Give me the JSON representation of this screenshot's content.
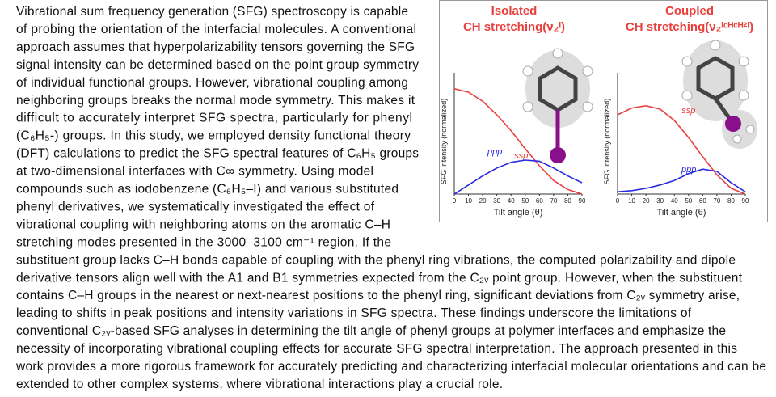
{
  "text": {
    "lines": [
      "Vibrational sum frequency generation (SFG) spectroscopy is capable",
      "of probing the orientation of the interfacial molecules. A conventional",
      "approach assumes that hyperpolarizability tensors governing the SFG",
      "signal intensity can be determined based on the point group symmetry",
      "of individual functional groups. However, vibrational coupling among",
      "neighboring groups breaks the normal mode symmetry. This makes it",
      "difficult to accurately interpret SFG spectra, particularly for phenyl",
      "(C₆H₅-) groups. In this study, we employed density functional theory",
      "(DFT) calculations to predict the SFG spectral features of C₆H₅ groups",
      "at two-dimensional interfaces with C∞ symmetry. Using model",
      "compounds such as iodobenzene (C₆H₅–I) and various substituted",
      "phenyl derivatives, we systematically investigated the effect of",
      "vibrational coupling with neighboring atoms on the aromatic C–H",
      "stretching modes presented in the 3000–3100 cm⁻¹ region. If the",
      "substituent group lacks C–H bonds capable of coupling with the phenyl ring vibrations, the computed polarizability and dipole",
      "derivative tensors align well with the A1 and B1 symmetries expected from the C₂ᵥ point group. However, when the substituent",
      "contains C–H groups in the nearest or next-nearest positions to the phenyl ring, significant deviations from C₂ᵥ symmetry arise,",
      "leading to shifts in peak positions and intensity variations in SFG spectra. These findings underscore the limitations of",
      "conventional C₂ᵥ-based SFG analyses in determining the tilt angle of phenyl groups at polymer interfaces and emphasize the",
      "necessity of incorporating vibrational coupling effects for accurate SFG spectral interpretation. The approach presented in this",
      "work provides a more rigorous framework for accurately predicting and characterizing interfacial molecular orientations and can be",
      "extended to other complex systems, where vibrational interactions play a crucial role."
    ]
  },
  "figure": {
    "charts": [
      {
        "type": "line",
        "title": "Isolated",
        "subtitle": "CH stretching(ν₂ᴵ)",
        "x_label": "Tilt angle (θ)",
        "y_label": "SFG intensity (normalized)",
        "x": [
          0,
          10,
          20,
          30,
          40,
          50,
          60,
          70,
          80,
          90
        ],
        "xlim": [
          0,
          90
        ],
        "xticks": [
          0,
          10,
          20,
          30,
          40,
          50,
          60,
          70,
          80,
          90
        ],
        "ylim": [
          0,
          1
        ],
        "series": [
          {
            "name": "ssp",
            "color": "#e8403c",
            "values": [
              0.93,
              0.9,
              0.82,
              0.7,
              0.56,
              0.4,
              0.25,
              0.12,
              0.04,
              0
            ]
          },
          {
            "name": "ppp",
            "color": "#2a2ae0",
            "values": [
              0,
              0.08,
              0.16,
              0.23,
              0.28,
              0.3,
              0.29,
              0.23,
              0.16,
              0.1
            ]
          }
        ]
      },
      {
        "type": "line",
        "title": "Coupled",
        "subtitle": "CH stretching(ν₂ᴵᶜᴴᶜᴴ²ᴵ)",
        "x_label": "Tilt angle (θ)",
        "y_label": "SFG intensity (normalized)",
        "x": [
          0,
          10,
          20,
          30,
          40,
          50,
          60,
          70,
          80,
          90
        ],
        "xlim": [
          0,
          90
        ],
        "xticks": [
          0,
          10,
          20,
          30,
          40,
          50,
          60,
          70,
          80,
          90
        ],
        "ylim": [
          0,
          1
        ],
        "series": [
          {
            "name": "ssp",
            "color": "#e8403c",
            "values": [
              0.7,
              0.76,
              0.78,
              0.75,
              0.65,
              0.5,
              0.33,
              0.17,
              0.05,
              0
            ]
          },
          {
            "name": "ppp",
            "color": "#2a2ae0",
            "values": [
              0.02,
              0.03,
              0.05,
              0.08,
              0.12,
              0.18,
              0.22,
              0.2,
              0.1,
              0.02
            ]
          }
        ]
      }
    ]
  }
}
